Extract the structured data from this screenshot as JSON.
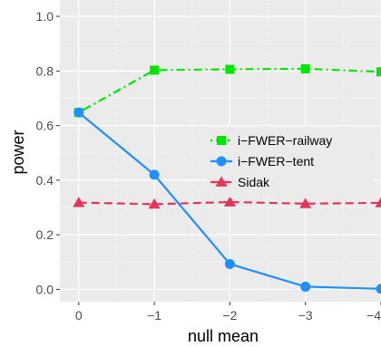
{
  "chart_data": {
    "type": "line",
    "xlabel": "null mean",
    "ylabel": "power",
    "x": [
      0,
      -1,
      -2,
      -3,
      -4
    ],
    "x_tick_labels": [
      "0",
      "−1",
      "−2",
      "−3",
      "−4"
    ],
    "y_ticks": [
      0.0,
      0.2,
      0.4,
      0.6,
      0.8,
      1.0
    ],
    "y_tick_labels": [
      "0.0",
      "0.2",
      "0.4",
      "0.6",
      "0.8",
      "1.0"
    ],
    "xlim": [
      0.25,
      -4.0
    ],
    "ylim": [
      -0.045,
      1.06
    ],
    "grid": true,
    "legend_position": "right",
    "series": [
      {
        "name": "i−FWER−railway",
        "values": [
          0.648,
          0.803,
          0.806,
          0.808,
          0.797
        ],
        "color": "#00e600",
        "line_style": "dotdash",
        "marker": "square"
      },
      {
        "name": "i−FWER−tent",
        "values": [
          0.648,
          0.42,
          0.093,
          0.01,
          0.002
        ],
        "color": "#1e90ff",
        "line_style": "solid",
        "marker": "circle"
      },
      {
        "name": "Sidak",
        "values": [
          0.318,
          0.312,
          0.32,
          0.314,
          0.317
        ],
        "color": "#e8335a",
        "line_style": "dashed",
        "marker": "triangle"
      }
    ]
  }
}
